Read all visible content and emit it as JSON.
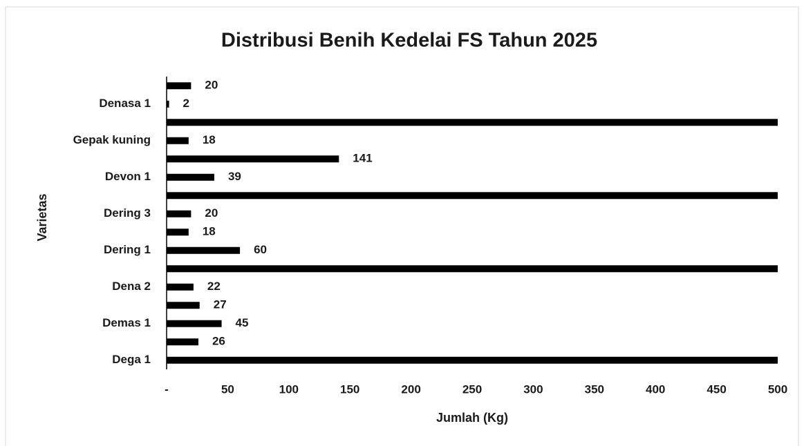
{
  "chart_data": {
    "type": "barh",
    "title": "Distribusi Benih Kedelai FS Tahun 2025",
    "xlabel": "Jumlah (Kg)",
    "ylabel": "Varietas",
    "categories": [
      "Dega 1",
      null,
      "Demas 1",
      null,
      "Dena 2",
      null,
      "Dering 1",
      null,
      "Dering 3",
      null,
      "Devon 1",
      null,
      "Gepak kuning",
      null,
      "Denasa 1",
      null
    ],
    "values": [
      500,
      26,
      45,
      27,
      22,
      500,
      60,
      18,
      20,
      500,
      39,
      141,
      18,
      500,
      2,
      20
    ],
    "value_labels": [
      null,
      "26",
      "45",
      "27",
      "22",
      null,
      "60",
      "18",
      "20",
      null,
      "39",
      "141",
      "18",
      null,
      "2",
      "20"
    ],
    "color": "#000000",
    "xlim": [
      0,
      500
    ],
    "xticks": [
      {
        "value": 0,
        "label": "-"
      },
      50,
      100,
      150,
      200,
      250,
      300,
      350,
      400,
      450,
      500
    ],
    "grid": false
  }
}
